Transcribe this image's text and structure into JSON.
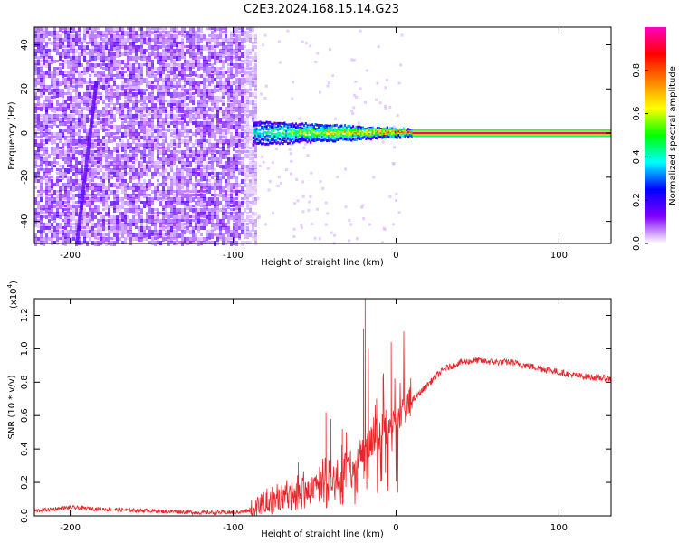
{
  "title": "C2E3.2024.168.15.14.G23",
  "chart_data": [
    {
      "type": "heatmap",
      "xlabel": "Height of straight line (km)",
      "ylabel": "Frequency (Hz)",
      "xlim": [
        -222,
        132
      ],
      "ylim": [
        -50,
        48
      ],
      "xticks": [
        -200,
        -100,
        0,
        100
      ],
      "yticks": [
        -40,
        -20,
        0,
        20,
        40
      ],
      "xtick_labels": [
        "-200",
        "-100",
        "0",
        "100"
      ],
      "ytick_labels": [
        "-40",
        "-20",
        "0",
        "20",
        "40"
      ],
      "colorbar": {
        "label": "Normalized spectral amplitude",
        "range": [
          0,
          1
        ],
        "ticks": [
          0.0,
          0.2,
          0.4,
          0.6,
          0.8
        ],
        "tick_labels": [
          "0.0",
          "0.2",
          "0.4",
          "0.6",
          "0.8"
        ],
        "colors": [
          "#ffffff",
          "#8000ff",
          "#0000ff",
          "#00ffff",
          "#00ff00",
          "#ffff00",
          "#ff8000",
          "#ff0000",
          "#ff00c0"
        ]
      },
      "features": {
        "noise_region_x": [
          -222,
          -88
        ],
        "faint_streak_x": [
          -196,
          -184
        ],
        "carrier_onset_x": -88,
        "carrier_freq_hz": 0,
        "steady_carrier_x": [
          10,
          132
        ],
        "peak_amplitude": 0.95
      }
    },
    {
      "type": "line",
      "xlabel": "Height of straight line (km)",
      "ylabel": "SNR (10 * v/v)",
      "y_multiplier": "(x10",
      "y_multiplier_exp": "4",
      "multiplier_suffix": ")",
      "xlim": [
        -222,
        132
      ],
      "ylim": [
        0,
        1.3
      ],
      "xticks": [
        -200,
        -100,
        0,
        100
      ],
      "yticks": [
        0.0,
        0.2,
        0.4,
        0.6,
        0.8,
        1.0,
        1.2
      ],
      "xtick_labels": [
        "-200",
        "-100",
        "0",
        "100"
      ],
      "ytick_labels": [
        "0.0",
        "0.2",
        "0.4",
        "0.6",
        "0.8",
        "1.0",
        "1.2"
      ],
      "color": "#e8262a",
      "x": [
        -222,
        -200,
        -180,
        -150,
        -120,
        -100,
        -90,
        -85,
        -75,
        -65,
        -55,
        -45,
        -38,
        -30,
        -25,
        -20,
        -15,
        -10,
        -5,
        0,
        5,
        10,
        15,
        20,
        25,
        30,
        40,
        50,
        60,
        70,
        80,
        90,
        100,
        110,
        120,
        132
      ],
      "y": [
        0.03,
        0.05,
        0.04,
        0.03,
        0.02,
        0.02,
        0.03,
        0.06,
        0.1,
        0.13,
        0.15,
        0.2,
        0.25,
        0.3,
        0.3,
        0.38,
        0.45,
        0.5,
        0.55,
        0.58,
        0.63,
        0.69,
        0.74,
        0.79,
        0.84,
        0.88,
        0.92,
        0.93,
        0.92,
        0.92,
        0.9,
        0.88,
        0.86,
        0.84,
        0.83,
        0.82
      ],
      "spikes": [
        {
          "x": -19,
          "y": 1.3
        },
        {
          "x": -20,
          "y": 1.12
        },
        {
          "x": -17,
          "y": 1.0
        },
        {
          "x": -3,
          "y": 1.04
        },
        {
          "x": -8,
          "y": 0.82
        },
        {
          "x": -40,
          "y": 0.58
        },
        {
          "x": -43,
          "y": 0.62
        },
        {
          "x": -60,
          "y": 0.32
        },
        {
          "x": -33,
          "y": 0.52
        },
        {
          "x": -12,
          "y": 0.7
        }
      ]
    }
  ]
}
